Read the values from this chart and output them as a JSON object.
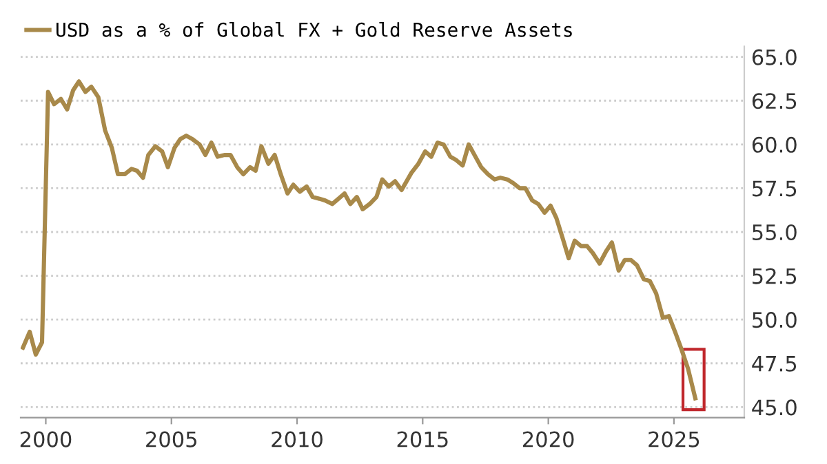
{
  "chart_data": {
    "type": "line",
    "legend": "top left",
    "grid": "y",
    "marker": "none",
    "line_style": "solid",
    "xlim": [
      1999.0,
      2027.8
    ],
    "xticks": [
      2000,
      2005,
      2010,
      2015,
      2020,
      2025
    ],
    "ylim": [
      44.4,
      65.6
    ],
    "yticks": [
      {
        "value": 45,
        "label": "45.0"
      },
      {
        "value": 47.5,
        "label": "47.5"
      },
      {
        "value": 50,
        "label": "50.0"
      },
      {
        "value": 52.5,
        "label": "52.5"
      },
      {
        "value": 55,
        "label": "55.0"
      },
      {
        "value": 57.5,
        "label": "57.5"
      },
      {
        "value": 60,
        "label": "60.0"
      },
      {
        "value": 62.5,
        "label": "62.5"
      },
      {
        "value": 65,
        "label": "65.0"
      }
    ],
    "series": [
      {
        "name": "USD as a % of Global FX + Gold Reserve Assets",
        "color": "#a8894a",
        "x": [
          1999.09,
          1999.36,
          1999.6,
          1999.85,
          2000.09,
          2000.33,
          2000.6,
          2000.85,
          2001.09,
          2001.32,
          2001.58,
          2001.81,
          2002.09,
          2002.36,
          2002.63,
          2002.87,
          2003.14,
          2003.41,
          2003.63,
          2003.87,
          2004.08,
          2004.36,
          2004.63,
          2004.86,
          2005.12,
          2005.35,
          2005.59,
          2005.84,
          2006.12,
          2006.35,
          2006.59,
          2006.84,
          2007.11,
          2007.35,
          2007.62,
          2007.86,
          2008.13,
          2008.35,
          2008.58,
          2008.86,
          2009.11,
          2009.35,
          2009.62,
          2009.85,
          2010.11,
          2010.38,
          2010.62,
          2010.89,
          2011.12,
          2011.4,
          2011.65,
          2011.89,
          2012.12,
          2012.38,
          2012.61,
          2012.89,
          2013.16,
          2013.39,
          2013.65,
          2013.9,
          2014.16,
          2014.56,
          2014.83,
          2015.1,
          2015.34,
          2015.59,
          2015.83,
          2016.1,
          2016.34,
          2016.59,
          2016.83,
          2017.1,
          2017.33,
          2017.6,
          2017.86,
          2018.09,
          2018.37,
          2018.6,
          2018.86,
          2019.09,
          2019.36,
          2019.6,
          2019.85,
          2020.09,
          2020.32,
          2020.58,
          2020.81,
          2021.05,
          2021.3,
          2021.54,
          2021.77,
          2022.04,
          2022.3,
          2022.53,
          2022.8,
          2023.04,
          2023.29,
          2023.53,
          2023.8,
          2024.04,
          2024.29,
          2024.56,
          2024.8,
          2025.07,
          2025.3,
          2025.56,
          2025.85
        ],
        "values": [
          48.4,
          49.3,
          48.0,
          48.7,
          63.0,
          62.3,
          62.6,
          62.0,
          63.1,
          63.6,
          63.0,
          63.3,
          62.7,
          60.8,
          59.8,
          58.3,
          58.3,
          58.6,
          58.5,
          58.1,
          59.4,
          59.9,
          59.6,
          58.7,
          59.8,
          60.3,
          60.5,
          60.3,
          60.0,
          59.4,
          60.1,
          59.3,
          59.4,
          59.4,
          58.7,
          58.3,
          58.7,
          58.5,
          59.9,
          58.9,
          59.4,
          58.3,
          57.2,
          57.7,
          57.3,
          57.6,
          57.0,
          56.9,
          56.8,
          56.6,
          56.9,
          57.2,
          56.6,
          57.0,
          56.3,
          56.6,
          57.0,
          58.0,
          57.6,
          57.9,
          57.4,
          58.4,
          58.9,
          59.6,
          59.3,
          60.1,
          60.0,
          59.3,
          59.1,
          58.8,
          60.0,
          59.3,
          58.7,
          58.3,
          58.0,
          58.1,
          58.0,
          57.8,
          57.5,
          57.5,
          56.8,
          56.6,
          56.1,
          56.5,
          55.8,
          54.6,
          53.5,
          54.5,
          54.2,
          54.2,
          53.8,
          53.2,
          53.9,
          54.4,
          52.8,
          53.4,
          53.4,
          53.1,
          52.3,
          52.2,
          51.5,
          50.1,
          50.2,
          49.2,
          48.3,
          47.2,
          45.5
        ]
      }
    ]
  }
}
